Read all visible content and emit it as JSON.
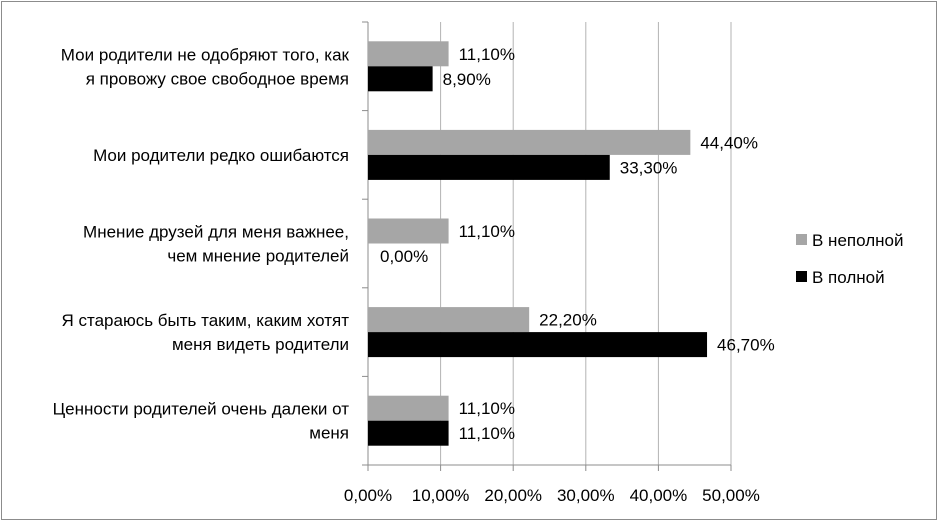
{
  "chart_data": {
    "type": "bar",
    "orientation": "horizontal",
    "categories": [
      [
        "Мои родители не одобряют того, как",
        "я провожу свое свободное время"
      ],
      [
        "Мои родители редко ошибаются"
      ],
      [
        "Мнение друзей для меня важнее,",
        "чем мнение родителей"
      ],
      [
        "Я стараюсь быть таким, каким хотят",
        "меня видеть родители"
      ],
      [
        "Ценности родителей очень далеки от",
        "меня"
      ]
    ],
    "series": [
      {
        "name": "В неполной",
        "color": "#a6a6a6",
        "values": [
          11.1,
          44.4,
          11.1,
          22.2,
          11.1
        ],
        "labels": [
          "11,10%",
          "44,40%",
          "11,10%",
          "22,20%",
          "11,10%"
        ]
      },
      {
        "name": "В полной",
        "color": "#000000",
        "values": [
          8.9,
          33.3,
          0,
          46.7,
          11.1
        ],
        "labels": [
          "8,90%",
          "33,30%",
          "0,00%",
          "46,70%",
          "11,10%"
        ]
      }
    ],
    "xlim": [
      0,
      50
    ],
    "xticks": [
      0,
      10,
      20,
      30,
      40,
      50
    ],
    "xtick_labels": [
      "0,00%",
      "10,00%",
      "20,00%",
      "30,00%",
      "40,00%",
      "50,00%"
    ],
    "grid": "vertical",
    "legend": "right",
    "title": "",
    "xlabel": "",
    "ylabel": ""
  }
}
